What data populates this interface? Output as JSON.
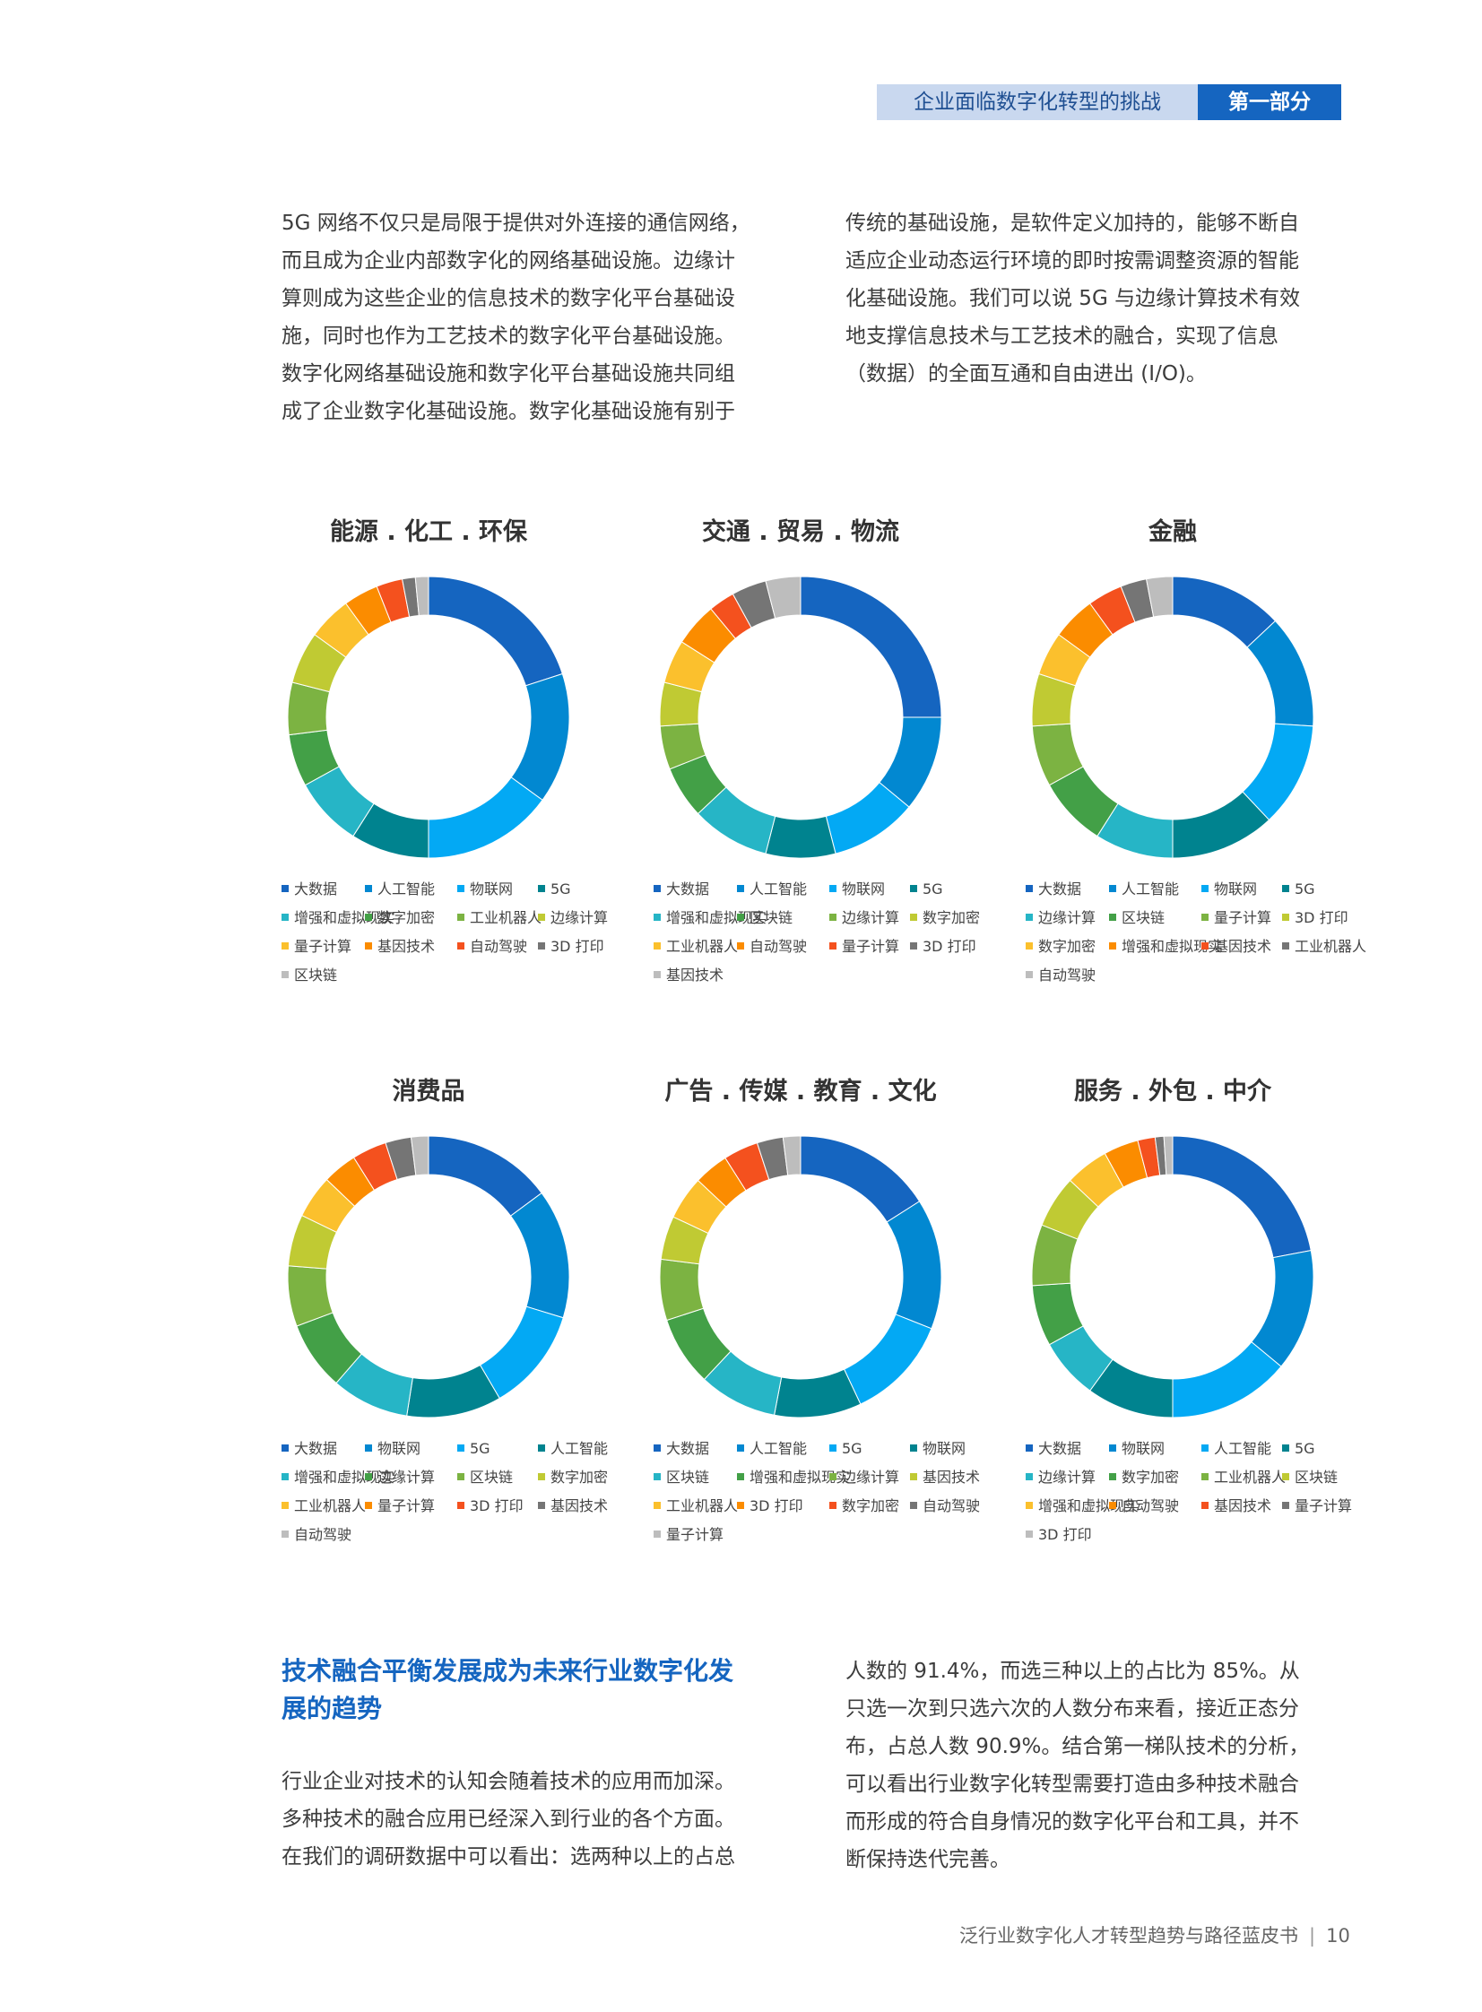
{
  "header": {
    "section": "企业面临数字化转型的挑战",
    "part": "第一部分"
  },
  "top_left_lines": [
    "5G 网络不仅只是局限于提供对外连接的通信网络，",
    "而且成为企业内部数字化的网络基础设施。边缘计",
    "算则成为这些企业的信息技术的数字化平台基础设",
    "施，同时也作为工艺技术的数字化平台基础设施。",
    "数字化网络基础设施和数字化平台基础设施共同组",
    "成了企业数字化基础设施。数字化基础设施有别于"
  ],
  "top_right_lines": [
    "传统的基础设施，是软件定义加持的，能够不断自",
    "适应企业动态运行环境的即时按需调整资源的智能",
    "化基础设施。我们可以说 5G 与边缘计算技术有效",
    "地支撑信息技术与工艺技术的融合，实现了信息",
    "（数据）的全面互通和自由进出 (I/O)。"
  ],
  "chart_data": [
    {
      "type": "pie",
      "title": "能源 . 化工 . 环保",
      "categories": [
        "大数据",
        "人工智能",
        "物联网",
        "5G",
        "增强和虚拟现实",
        "数字加密",
        "工业机器人",
        "边缘计算",
        "量子计算",
        "基因技术",
        "自动驾驶",
        "3D 打印",
        "区块链"
      ],
      "values": [
        20,
        15,
        15,
        9,
        8,
        6,
        6,
        6,
        5,
        4,
        3,
        1.5,
        1.5
      ],
      "colors": [
        "#1565c0",
        "#0288d1",
        "#03a9f4",
        "#00838f",
        "#26b5c6",
        "#43a047",
        "#7cb342",
        "#c0ca33",
        "#fbc02d",
        "#fb8c00",
        "#f4511e",
        "#757575",
        "#bdbdbd"
      ]
    },
    {
      "type": "pie",
      "title": "交通 . 贸易 . 物流",
      "categories": [
        "大数据",
        "人工智能",
        "物联网",
        "5G",
        "增强和虚拟现实",
        "区块链",
        "边缘计算",
        "数字加密",
        "工业机器人",
        "自动驾驶",
        "量子计算",
        "3D 打印",
        "基因技术"
      ],
      "values": [
        25,
        11,
        10,
        8,
        9,
        6,
        5,
        5,
        5,
        5,
        3,
        4,
        4
      ],
      "colors": [
        "#1565c0",
        "#0288d1",
        "#03a9f4",
        "#00838f",
        "#26b5c6",
        "#43a047",
        "#7cb342",
        "#c0ca33",
        "#fbc02d",
        "#fb8c00",
        "#f4511e",
        "#757575",
        "#bdbdbd"
      ]
    },
    {
      "type": "pie",
      "title": "金融",
      "categories": [
        "大数据",
        "人工智能",
        "物联网",
        "5G",
        "边缘计算",
        "区块链",
        "量子计算",
        "3D 打印",
        "数字加密",
        "增强和虚拟现实",
        "基因技术",
        "工业机器人",
        "自动驾驶"
      ],
      "values": [
        13,
        13,
        12,
        12,
        9,
        8,
        7,
        6,
        5,
        5,
        4,
        3,
        3
      ],
      "colors": [
        "#1565c0",
        "#0288d1",
        "#03a9f4",
        "#00838f",
        "#26b5c6",
        "#43a047",
        "#7cb342",
        "#c0ca33",
        "#fbc02d",
        "#fb8c00",
        "#f4511e",
        "#757575",
        "#bdbdbd"
      ]
    },
    {
      "type": "pie",
      "title": "消费品",
      "categories": [
        "大数据",
        "物联网",
        "5G",
        "人工智能",
        "增强和虚拟现实",
        "边缘计算",
        "区块链",
        "数字加密",
        "工业机器人",
        "量子计算",
        "3D 打印",
        "基因技术",
        "自动驾驶"
      ],
      "values": [
        15,
        15,
        12,
        11,
        9,
        8,
        7,
        6,
        5,
        4,
        4,
        3,
        2
      ],
      "colors": [
        "#1565c0",
        "#0288d1",
        "#03a9f4",
        "#00838f",
        "#26b5c6",
        "#43a047",
        "#7cb342",
        "#c0ca33",
        "#fbc02d",
        "#fb8c00",
        "#f4511e",
        "#757575",
        "#bdbdbd"
      ]
    },
    {
      "type": "pie",
      "title": "广告 . 传媒 . 教育 . 文化",
      "categories": [
        "大数据",
        "人工智能",
        "5G",
        "物联网",
        "区块链",
        "增强和虚拟现实",
        "边缘计算",
        "基因技术",
        "工业机器人",
        "3D 打印",
        "数字加密",
        "自动驾驶",
        "量子计算"
      ],
      "values": [
        16,
        15,
        12,
        10,
        9,
        8,
        7,
        5,
        5,
        4,
        4,
        3,
        2
      ],
      "colors": [
        "#1565c0",
        "#0288d1",
        "#03a9f4",
        "#00838f",
        "#26b5c6",
        "#43a047",
        "#7cb342",
        "#c0ca33",
        "#fbc02d",
        "#fb8c00",
        "#f4511e",
        "#757575",
        "#bdbdbd"
      ]
    },
    {
      "type": "pie",
      "title": "服务 . 外包 . 中介",
      "categories": [
        "大数据",
        "物联网",
        "人工智能",
        "5G",
        "边缘计算",
        "数字加密",
        "工业机器人",
        "区块链",
        "增强和虚拟现实",
        "自动驾驶",
        "基因技术",
        "量子计算",
        "3D 打印"
      ],
      "values": [
        22,
        14,
        14,
        10,
        7,
        7,
        7,
        6,
        5,
        4,
        2,
        1,
        1
      ],
      "colors": [
        "#1565c0",
        "#0288d1",
        "#03a9f4",
        "#00838f",
        "#26b5c6",
        "#43a047",
        "#7cb342",
        "#c0ca33",
        "#fbc02d",
        "#fb8c00",
        "#f4511e",
        "#757575",
        "#bdbdbd"
      ]
    }
  ],
  "section_heading_lines": [
    "技术融合平衡发展成为未来行业数字化发",
    "展的趋势"
  ],
  "bottom_left_lines": [
    "行业企业对技术的认知会随着技术的应用而加深。",
    "多种技术的融合应用已经深入到行业的各个方面。",
    "在我们的调研数据中可以看出：选两种以上的占总"
  ],
  "bottom_right_lines": [
    "人数的 91.4%，而选三种以上的占比为 85%。从",
    "只选一次到只选六次的人数分布来看，接近正态分",
    "布，占总人数 90.9%。结合第一梯队技术的分析，",
    "可以看出行业数字化转型需要打造由多种技术融合",
    "而形成的符合自身情况的数字化平台和工具，并不",
    "断保持迭代完善。"
  ],
  "footer": {
    "title": "泛行业数字化人才转型趋势与路径蓝皮书",
    "page": "10"
  }
}
